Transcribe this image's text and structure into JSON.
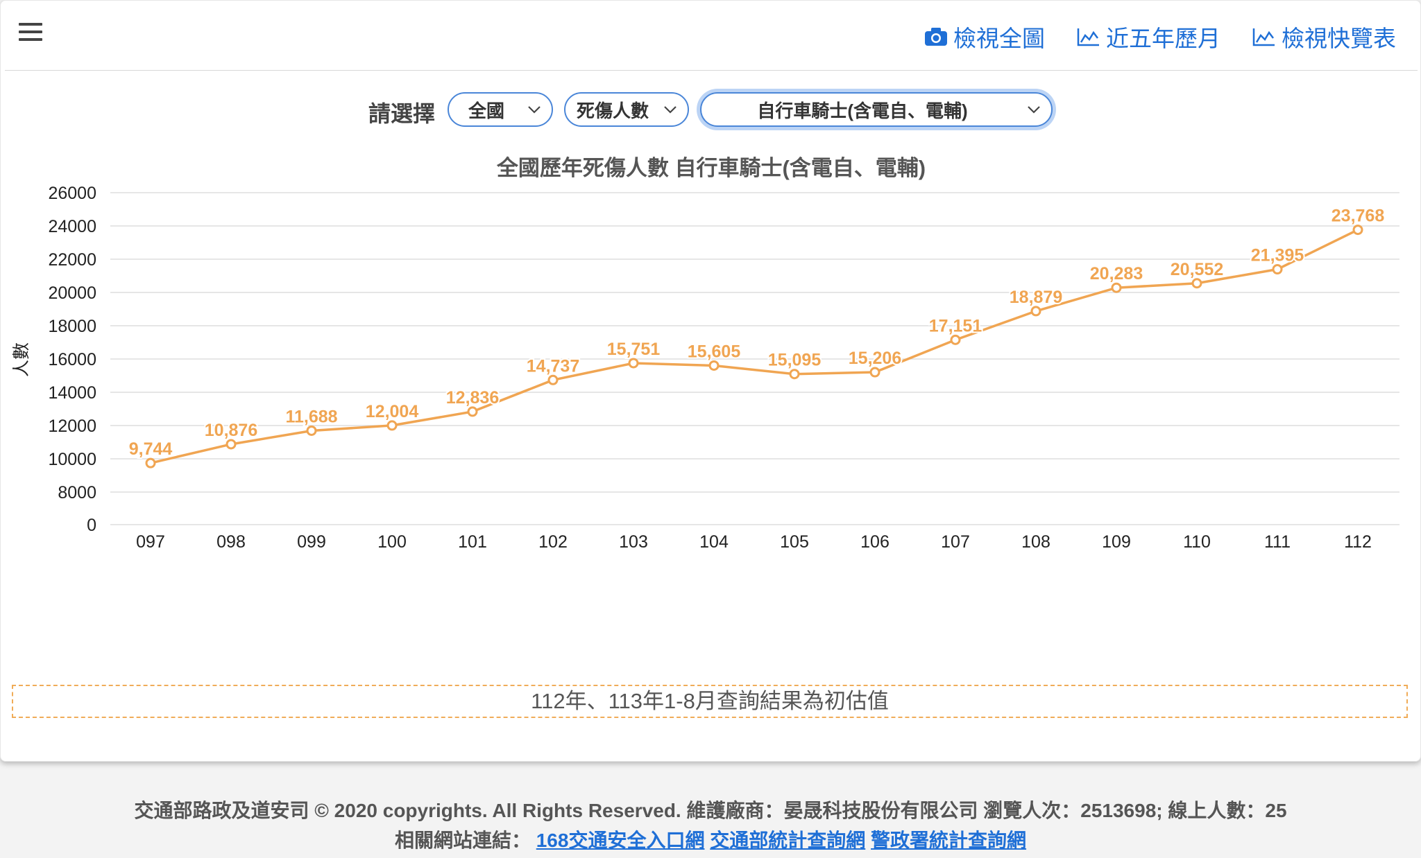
{
  "topbar": {
    "links": [
      {
        "label": "檢視全圖",
        "icon": "camera-icon"
      },
      {
        "label": "近五年歷月",
        "icon": "area-chart-icon"
      },
      {
        "label": "檢視快覽表",
        "icon": "area-chart-icon"
      }
    ]
  },
  "filters": {
    "label": "請選擇",
    "region": "全國",
    "metric": "死傷人數",
    "category": "自行車騎士(含電自、電輔)"
  },
  "chart_data": {
    "type": "line",
    "title": "全國歷年死傷人數 自行車騎士(含電自、電輔)",
    "xlabel": "",
    "ylabel": "人數",
    "categories": [
      "097",
      "098",
      "099",
      "100",
      "101",
      "102",
      "103",
      "104",
      "105",
      "106",
      "107",
      "108",
      "109",
      "110",
      "111",
      "112"
    ],
    "series": [
      {
        "values": [
          9744,
          10876,
          11688,
          12004,
          12836,
          14737,
          15751,
          15605,
          15095,
          15206,
          17151,
          18879,
          20283,
          20552,
          21395,
          23768
        ]
      }
    ],
    "data_labels": [
      "9,744",
      "10,876",
      "11,688",
      "12,004",
      "12,836",
      "14,737",
      "15,751",
      "15,605",
      "15,095",
      "15,206",
      "17,151",
      "18,879",
      "20,283",
      "20,552",
      "21,395",
      "23,768"
    ],
    "y_ticks": [
      "0",
      "8000",
      "10000",
      "12000",
      "14000",
      "16000",
      "18000",
      "20000",
      "22000",
      "24000",
      "26000"
    ],
    "ylim": [
      0,
      26000
    ],
    "grid": true,
    "legend": "none",
    "color": "#f0a552"
  },
  "note": "112年、113年1-8月查詢結果為初估值",
  "footer": {
    "copyright": "交通部路政及道安司 © 2020 copyrights. All Rights Reserved. 維護廠商：晏晟科技股份有限公司 瀏覽人次：2513698; 線上人數：25",
    "links_label": "相關網站連結：",
    "links": [
      "168交通安全入口網",
      "交通部統計查詢網",
      "警政署統計查詢網"
    ]
  }
}
